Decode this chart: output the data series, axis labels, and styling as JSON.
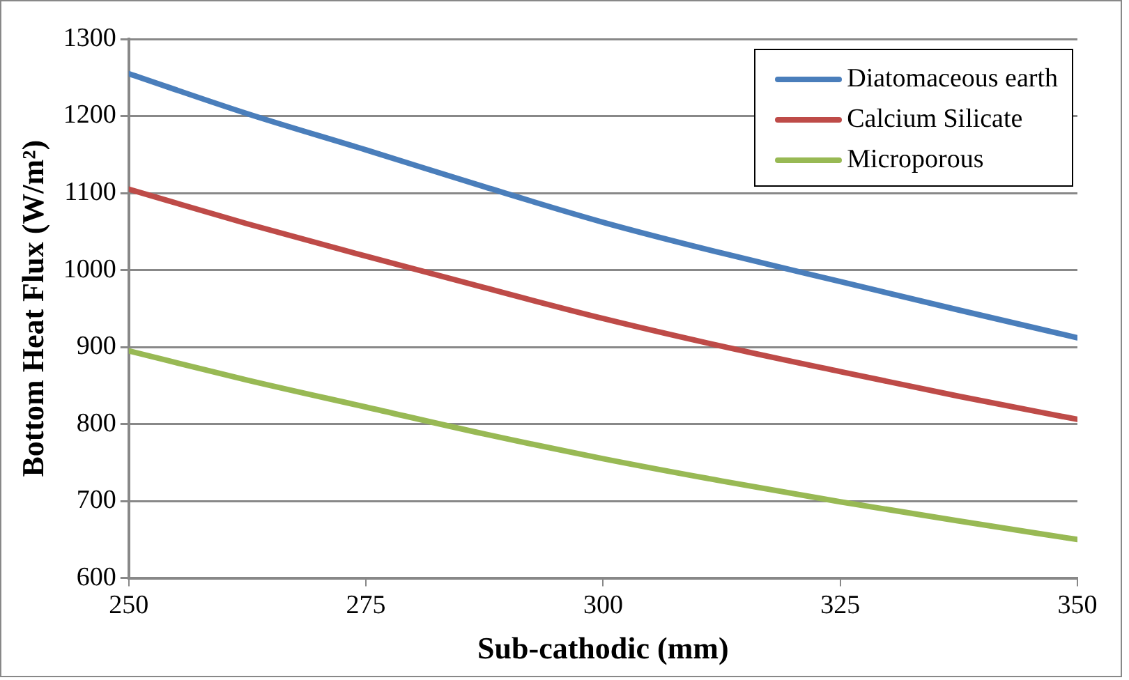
{
  "chart_data": {
    "type": "line",
    "xlabel": "Sub-cathodic (mm)",
    "ylabel": "Bottom Heat Flux (W/m²)",
    "x": [
      250,
      262.5,
      275,
      287.5,
      300,
      312.5,
      325,
      337.5,
      350
    ],
    "series": [
      {
        "name": "Diatomaceous earth",
        "color": "#4a7ebb",
        "values": [
          1255,
          1203,
          1156,
          1108,
          1062,
          1022,
          985,
          948,
          912
        ]
      },
      {
        "name": "Calcium Silicate",
        "color": "#be4b48",
        "values": [
          1105,
          1060,
          1018,
          977,
          937,
          901,
          868,
          836,
          806
        ]
      },
      {
        "name": "Microporous",
        "color": "#98b954",
        "values": [
          895,
          857,
          822,
          787,
          755,
          726,
          699,
          674,
          650
        ]
      }
    ],
    "xlim": [
      250,
      350
    ],
    "xticks": [
      250,
      275,
      300,
      325,
      350
    ],
    "ylim": [
      600,
      1300
    ],
    "yticks": [
      600,
      700,
      800,
      900,
      1000,
      1100,
      1200,
      1300
    ],
    "grid": "y",
    "legend": "top right",
    "marker": "none",
    "line_style": "solid"
  }
}
